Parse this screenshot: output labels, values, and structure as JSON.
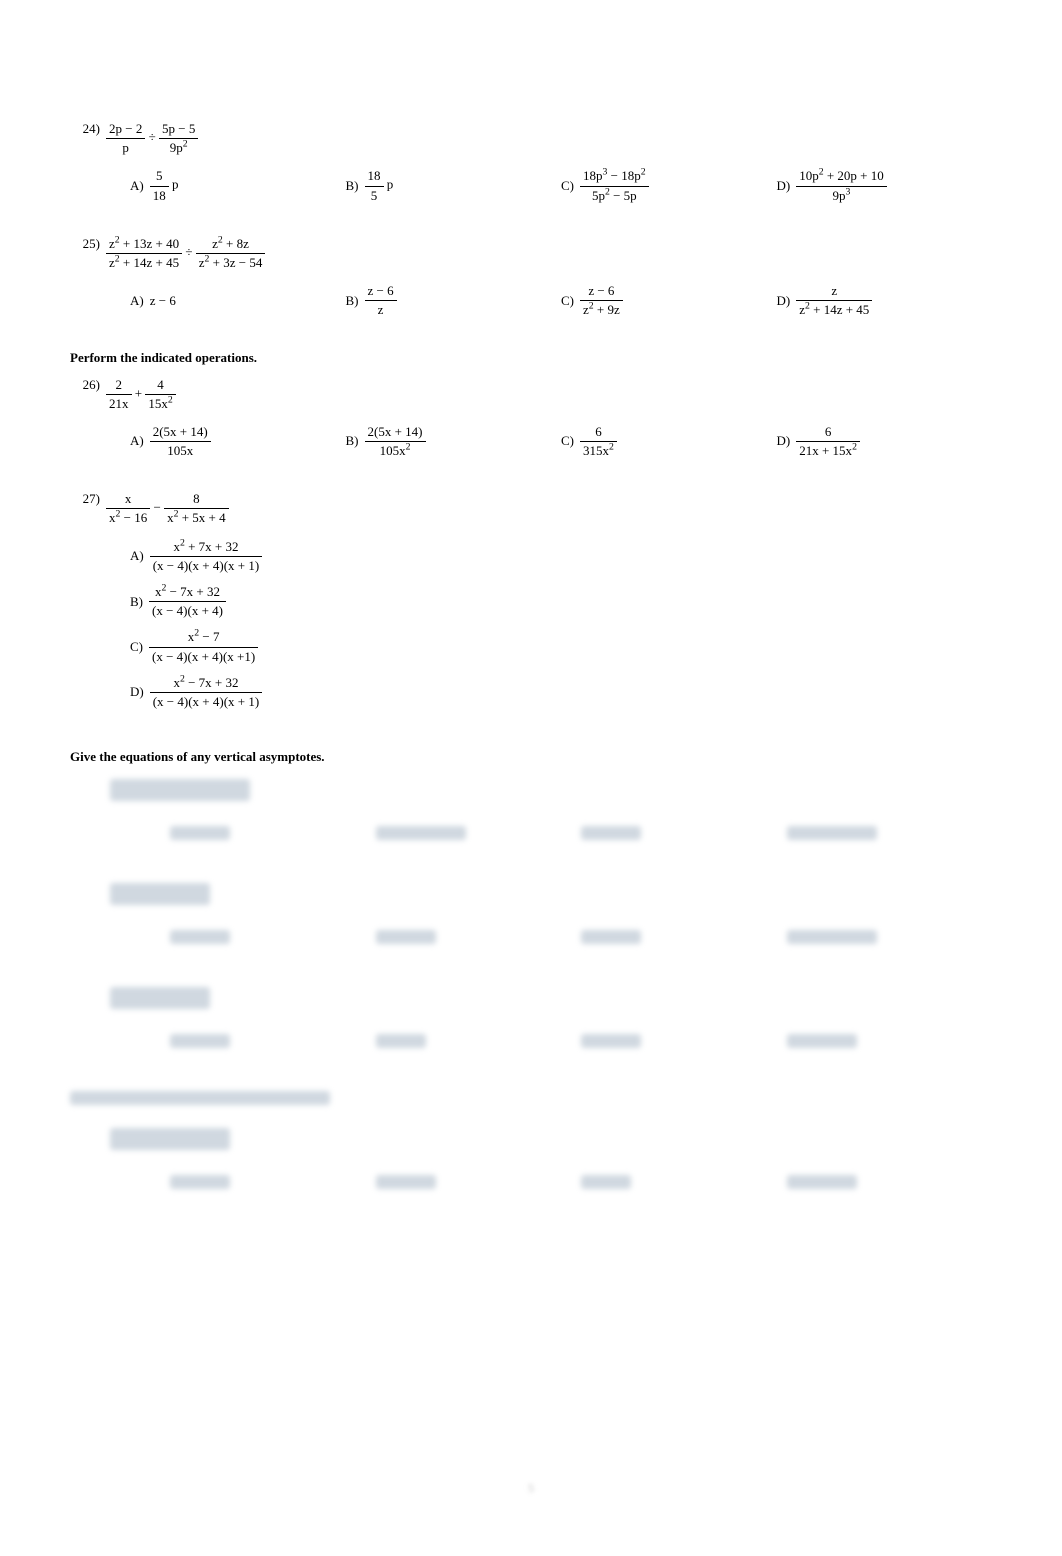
{
  "problems": [
    {
      "num": "24)",
      "expr_html": "<span class='frac'><span class='num'>2p − 2</span><span class='den'>p</span></span> ÷ <span class='frac'><span class='num'>5p − 5</span><span class='den'>9p<sup>2</sup></span></span>",
      "choices": [
        {
          "label": "A)",
          "html": "<span class='frac'><span class='num'>5</span><span class='den'>18</span></span> p"
        },
        {
          "label": "B)",
          "html": "<span class='frac'><span class='num'>18</span><span class='den'>5</span></span> p"
        },
        {
          "label": "C)",
          "html": "<span class='frac'><span class='num'>18p<sup>3</sup> − 18p<sup>2</sup></span><span class='den'>5p<sup>2</sup> − 5p</span></span>"
        },
        {
          "label": "D)",
          "html": "<span class='frac'><span class='num'>10p<sup>2</sup> + 20p + 10</span><span class='den'>9p<sup>3</sup></span></span>"
        }
      ]
    },
    {
      "num": "25)",
      "expr_html": "<span class='frac'><span class='num'>z<sup>2</sup> + 13z + 40</span><span class='den'>z<sup>2</sup> + 14z + 45</span></span> ÷ <span class='frac'><span class='num'>z<sup>2</sup> + 8z</span><span class='den'>z<sup>2</sup> + 3z − 54</span></span>",
      "choices": [
        {
          "label": "A)",
          "html": "z − 6"
        },
        {
          "label": "B)",
          "html": "<span class='frac'><span class='num'>z − 6</span><span class='den'>z</span></span>"
        },
        {
          "label": "C)",
          "html": "<span class='frac'><span class='num'>z − 6</span><span class='den'>z<sup>2</sup> + 9z</span></span>"
        },
        {
          "label": "D)",
          "html": "<span class='frac'><span class='num'>z</span><span class='den'>z<sup>2</sup> + 14z + 45</span></span>"
        }
      ]
    }
  ],
  "heading1": "Perform the indicated operations.",
  "problems2": [
    {
      "num": "26)",
      "expr_html": "<span class='frac'><span class='num'>2</span><span class='den'>21x</span></span> + <span class='frac'><span class='num'>4</span><span class='den'>15x<sup>2</sup></span></span>",
      "choices": [
        {
          "label": "A)",
          "html": "<span class='frac'><span class='num'>2(5x + 14)</span><span class='den'>105x</span></span>"
        },
        {
          "label": "B)",
          "html": "<span class='frac'><span class='num'>2(5x + 14)</span><span class='den'>105x<sup>2</sup></span></span>"
        },
        {
          "label": "C)",
          "html": "<span class='frac'><span class='num'>6</span><span class='den'>315x<sup>2</sup></span></span>"
        },
        {
          "label": "D)",
          "html": "<span class='frac'><span class='num'>6</span><span class='den'>21x + 15x<sup>2</sup></span></span>"
        }
      ]
    },
    {
      "num": "27)",
      "expr_html": "<span class='frac'><span class='num'>x</span><span class='den'>x<sup>2</sup> − 16</span></span> − <span class='frac'><span class='num'>8</span><span class='den'>x<sup>2</sup> + 5x + 4</span></span>",
      "choices_2col": [
        {
          "label": "A)",
          "html": "<span class='frac'><span class='num'>x<sup>2</sup> + 7x + 32</span><span class='den'>(x − 4)(x + 4)(x + 1)</span></span>"
        },
        {
          "label": "B)",
          "html": "<span class='frac'><span class='num'>x<sup>2</sup> − 7x + 32</span><span class='den'>(x − 4)(x + 4)</span></span>"
        },
        {
          "label": "C)",
          "html": "<span class='frac'><span class='num'>x<sup>2</sup> − 7</span><span class='den'>(x − 4)(x + 4)(x +1)</span></span>"
        },
        {
          "label": "D)",
          "html": "<span class='frac'><span class='num'>x<sup>2</sup> − 7x + 32</span><span class='den'>(x − 4)(x + 4)(x + 1)</span></span>"
        }
      ]
    }
  ],
  "heading2": "Give the equations of any vertical asymptotes.",
  "blur_sections": [
    {
      "q_width": 140,
      "choice_widths": [
        60,
        90,
        60,
        90
      ]
    },
    {
      "q_width": 100,
      "choice_widths": [
        60,
        60,
        60,
        90
      ]
    },
    {
      "q_width": 100,
      "choice_widths": [
        60,
        50,
        60,
        70
      ]
    }
  ],
  "blur_heading_width": 260,
  "blur_section_4": {
    "q_width": 120,
    "choice_widths": [
      60,
      60,
      50,
      70
    ]
  },
  "page_number": "5",
  "colors": {
    "text": "#000000",
    "blur": "#d0d8e0",
    "background": "#ffffff"
  }
}
